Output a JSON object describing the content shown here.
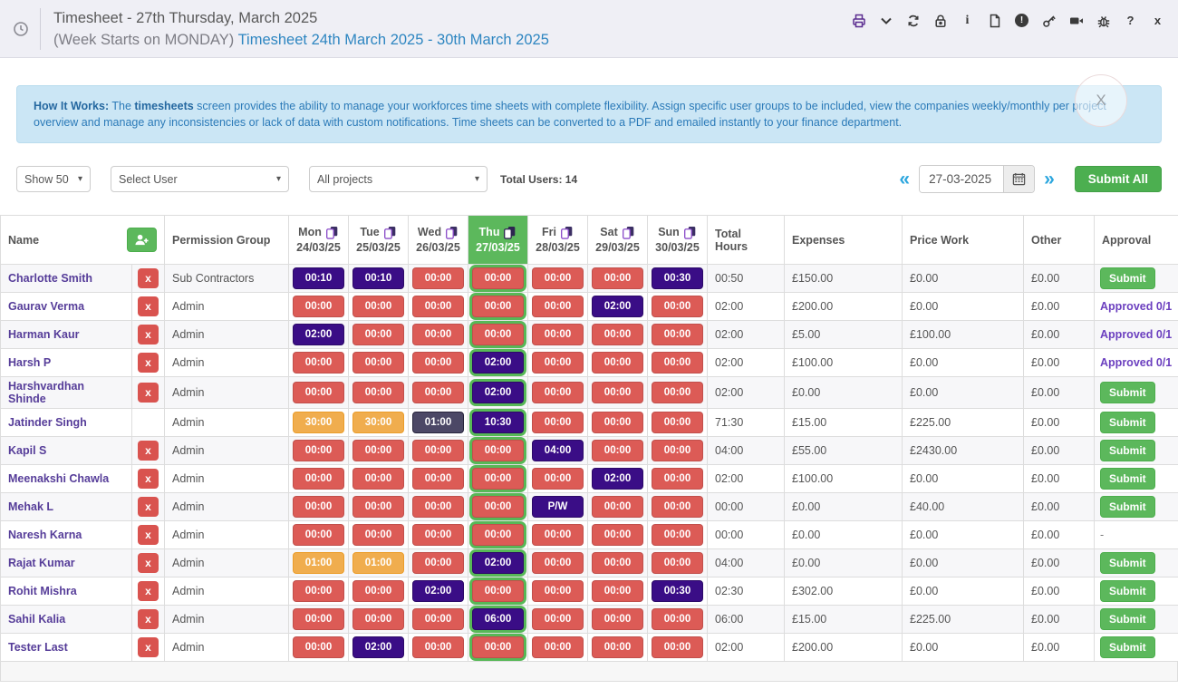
{
  "header": {
    "title_line1": "Timesheet - 27th Thursday, March 2025",
    "title_line2_prefix": "(Week Starts on MONDAY) ",
    "title_line2_link": "Timesheet 24th March 2025 - 30th March 2025",
    "toolbar_icons": [
      "print-icon",
      "chevron-down-icon",
      "refresh-icon",
      "lock-icon",
      "info-icon",
      "pdf-icon",
      "alert-icon",
      "key-icon",
      "camera-icon",
      "bug-icon",
      "help-icon",
      "close-icon"
    ]
  },
  "banner": {
    "bold1": "How It Works:",
    "text1": " The ",
    "bold2": "timesheets",
    "text2": " screen provides the ability to manage your workforces time sheets with complete flexibility. Assign specific user groups to be included, view the companies weekly/monthly per project overview and manage any inconsistencies or lack of data with custom notifications. Time sheets can be converted to a PDF and emailed instantly to your finance department.",
    "close_label": "X"
  },
  "filters": {
    "show": "Show 50",
    "select_user": "Select User",
    "projects": "All projects",
    "total_users": "Total Users: 14",
    "date": "27-03-2025",
    "prev_arrow": "«",
    "next_arrow": "»",
    "submit_all": "Submit All"
  },
  "colors": {
    "day_active": "#5cb85c",
    "cell_zero": "#DC5B56",
    "cell_filled": "#3A0D86",
    "cell_warning": "#F0AD4E",
    "cell_slate": "#4C4866",
    "submit_green": "#5cb85c",
    "name_purple": "#563D99",
    "approved_purple": "#6B3FBF"
  },
  "table": {
    "columns": {
      "name": "Name",
      "permission_group": "Permission Group",
      "total_hours": "Total Hours",
      "expenses": "Expenses",
      "price_work": "Price Work",
      "other": "Other",
      "approval": "Approval"
    },
    "days": [
      {
        "label": "Mon",
        "date": "24/03/25",
        "active": false
      },
      {
        "label": "Tue",
        "date": "25/03/25",
        "active": false
      },
      {
        "label": "Wed",
        "date": "26/03/25",
        "active": false
      },
      {
        "label": "Thu",
        "date": "27/03/25",
        "active": true
      },
      {
        "label": "Fri",
        "date": "28/03/25",
        "active": false
      },
      {
        "label": "Sat",
        "date": "29/03/25",
        "active": false
      },
      {
        "label": "Sun",
        "date": "30/03/25",
        "active": false
      }
    ],
    "rows": [
      {
        "name": "Charlotte Smith",
        "delete": true,
        "group": "Sub Contractors",
        "cells": [
          [
            "00:10",
            "purple"
          ],
          [
            "00:10",
            "purple"
          ],
          [
            "00:00",
            "red"
          ],
          [
            "00:00",
            "red"
          ],
          [
            "00:00",
            "red"
          ],
          [
            "00:00",
            "red"
          ],
          [
            "00:30",
            "purple"
          ]
        ],
        "total": "00:50",
        "expenses": "£150.00",
        "price_work": "£0.00",
        "other": "£0.00",
        "approval": {
          "style": "submit",
          "label": "Submit"
        }
      },
      {
        "name": "Gaurav Verma",
        "delete": true,
        "group": "Admin",
        "cells": [
          [
            "00:00",
            "red"
          ],
          [
            "00:00",
            "red"
          ],
          [
            "00:00",
            "red"
          ],
          [
            "00:00",
            "red"
          ],
          [
            "00:00",
            "red"
          ],
          [
            "02:00",
            "purple"
          ],
          [
            "00:00",
            "red"
          ]
        ],
        "total": "02:00",
        "expenses": "£200.00",
        "price_work": "£0.00",
        "other": "£0.00",
        "approval": {
          "style": "approved",
          "label": "Approved 0/1"
        }
      },
      {
        "name": "Harman Kaur",
        "delete": true,
        "group": "Admin",
        "cells": [
          [
            "02:00",
            "purple"
          ],
          [
            "00:00",
            "red"
          ],
          [
            "00:00",
            "red"
          ],
          [
            "00:00",
            "red"
          ],
          [
            "00:00",
            "red"
          ],
          [
            "00:00",
            "red"
          ],
          [
            "00:00",
            "red"
          ]
        ],
        "total": "02:00",
        "expenses": "£5.00",
        "price_work": "£100.00",
        "other": "£0.00",
        "approval": {
          "style": "approved",
          "label": "Approved 0/1"
        }
      },
      {
        "name": "Harsh P",
        "delete": true,
        "group": "Admin",
        "cells": [
          [
            "00:00",
            "red"
          ],
          [
            "00:00",
            "red"
          ],
          [
            "00:00",
            "red"
          ],
          [
            "02:00",
            "purple"
          ],
          [
            "00:00",
            "red"
          ],
          [
            "00:00",
            "red"
          ],
          [
            "00:00",
            "red"
          ]
        ],
        "total": "02:00",
        "expenses": "£100.00",
        "price_work": "£0.00",
        "other": "£0.00",
        "approval": {
          "style": "approved",
          "label": "Approved 0/1"
        }
      },
      {
        "name": "Harshvardhan Shinde",
        "delete": true,
        "group": "Admin",
        "cells": [
          [
            "00:00",
            "red"
          ],
          [
            "00:00",
            "red"
          ],
          [
            "00:00",
            "red"
          ],
          [
            "02:00",
            "purple"
          ],
          [
            "00:00",
            "red"
          ],
          [
            "00:00",
            "red"
          ],
          [
            "00:00",
            "red"
          ]
        ],
        "total": "02:00",
        "expenses": "£0.00",
        "price_work": "£0.00",
        "other": "£0.00",
        "approval": {
          "style": "submit",
          "label": "Submit"
        }
      },
      {
        "name": "Jatinder Singh",
        "delete": false,
        "group": "Admin",
        "cells": [
          [
            "30:00",
            "orange"
          ],
          [
            "30:00",
            "orange"
          ],
          [
            "01:00",
            "slate"
          ],
          [
            "10:30",
            "purple"
          ],
          [
            "00:00",
            "red"
          ],
          [
            "00:00",
            "red"
          ],
          [
            "00:00",
            "red"
          ]
        ],
        "total": "71:30",
        "expenses": "£15.00",
        "price_work": "£225.00",
        "other": "£0.00",
        "approval": {
          "style": "submit",
          "label": "Submit"
        }
      },
      {
        "name": "Kapil S",
        "delete": true,
        "group": "Admin",
        "cells": [
          [
            "00:00",
            "red"
          ],
          [
            "00:00",
            "red"
          ],
          [
            "00:00",
            "red"
          ],
          [
            "00:00",
            "red"
          ],
          [
            "04:00",
            "purple"
          ],
          [
            "00:00",
            "red"
          ],
          [
            "00:00",
            "red"
          ]
        ],
        "total": "04:00",
        "expenses": "£55.00",
        "price_work": "£2430.00",
        "other": "£0.00",
        "approval": {
          "style": "submit",
          "label": "Submit"
        }
      },
      {
        "name": "Meenakshi Chawla",
        "delete": true,
        "group": "Admin",
        "cells": [
          [
            "00:00",
            "red"
          ],
          [
            "00:00",
            "red"
          ],
          [
            "00:00",
            "red"
          ],
          [
            "00:00",
            "red"
          ],
          [
            "00:00",
            "red"
          ],
          [
            "02:00",
            "purple"
          ],
          [
            "00:00",
            "red"
          ]
        ],
        "total": "02:00",
        "expenses": "£100.00",
        "price_work": "£0.00",
        "other": "£0.00",
        "approval": {
          "style": "submit",
          "label": "Submit"
        }
      },
      {
        "name": "Mehak L",
        "delete": true,
        "group": "Admin",
        "cells": [
          [
            "00:00",
            "red"
          ],
          [
            "00:00",
            "red"
          ],
          [
            "00:00",
            "red"
          ],
          [
            "00:00",
            "red"
          ],
          [
            "P/W",
            "purple"
          ],
          [
            "00:00",
            "red"
          ],
          [
            "00:00",
            "red"
          ]
        ],
        "total": "00:00",
        "expenses": "£0.00",
        "price_work": "£40.00",
        "other": "£0.00",
        "approval": {
          "style": "submit",
          "label": "Submit"
        }
      },
      {
        "name": "Naresh Karna",
        "delete": true,
        "group": "Admin",
        "cells": [
          [
            "00:00",
            "red"
          ],
          [
            "00:00",
            "red"
          ],
          [
            "00:00",
            "red"
          ],
          [
            "00:00",
            "red"
          ],
          [
            "00:00",
            "red"
          ],
          [
            "00:00",
            "red"
          ],
          [
            "00:00",
            "red"
          ]
        ],
        "total": "00:00",
        "expenses": "£0.00",
        "price_work": "£0.00",
        "other": "£0.00",
        "approval": {
          "style": "dash",
          "label": "-"
        }
      },
      {
        "name": "Rajat Kumar",
        "delete": true,
        "group": "Admin",
        "cells": [
          [
            "01:00",
            "orange"
          ],
          [
            "01:00",
            "orange"
          ],
          [
            "00:00",
            "red"
          ],
          [
            "02:00",
            "purple"
          ],
          [
            "00:00",
            "red"
          ],
          [
            "00:00",
            "red"
          ],
          [
            "00:00",
            "red"
          ]
        ],
        "total": "04:00",
        "expenses": "£0.00",
        "price_work": "£0.00",
        "other": "£0.00",
        "approval": {
          "style": "submit",
          "label": "Submit"
        }
      },
      {
        "name": "Rohit Mishra",
        "delete": true,
        "group": "Admin",
        "cells": [
          [
            "00:00",
            "red"
          ],
          [
            "00:00",
            "red"
          ],
          [
            "02:00",
            "purple"
          ],
          [
            "00:00",
            "red"
          ],
          [
            "00:00",
            "red"
          ],
          [
            "00:00",
            "red"
          ],
          [
            "00:30",
            "purple"
          ]
        ],
        "total": "02:30",
        "expenses": "£302.00",
        "price_work": "£0.00",
        "other": "£0.00",
        "approval": {
          "style": "submit",
          "label": "Submit"
        }
      },
      {
        "name": "Sahil Kalia",
        "delete": true,
        "group": "Admin",
        "cells": [
          [
            "00:00",
            "red"
          ],
          [
            "00:00",
            "red"
          ],
          [
            "00:00",
            "red"
          ],
          [
            "06:00",
            "purple"
          ],
          [
            "00:00",
            "red"
          ],
          [
            "00:00",
            "red"
          ],
          [
            "00:00",
            "red"
          ]
        ],
        "total": "06:00",
        "expenses": "£15.00",
        "price_work": "£225.00",
        "other": "£0.00",
        "approval": {
          "style": "submit",
          "label": "Submit"
        }
      },
      {
        "name": "Tester Last",
        "delete": true,
        "group": "Admin",
        "cells": [
          [
            "00:00",
            "red"
          ],
          [
            "02:00",
            "purple"
          ],
          [
            "00:00",
            "red"
          ],
          [
            "00:00",
            "red"
          ],
          [
            "00:00",
            "red"
          ],
          [
            "00:00",
            "red"
          ],
          [
            "00:00",
            "red"
          ]
        ],
        "total": "02:00",
        "expenses": "£200.00",
        "price_work": "£0.00",
        "other": "£0.00",
        "approval": {
          "style": "submit",
          "label": "Submit"
        }
      }
    ]
  }
}
